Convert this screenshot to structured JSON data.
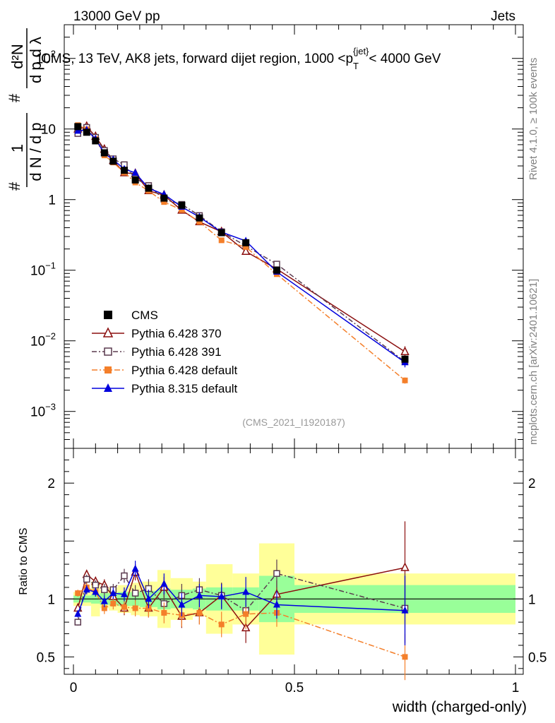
{
  "header": {
    "left": "13000 GeV pp",
    "right": "Jets",
    "side_top": "Rivet 4.1.0, ≥ 100k events",
    "side_bottom": "mcplots.cern.ch [arXiv:2401.10621]"
  },
  "chart_data": {
    "type": "line",
    "title": "CMS, 13 TeV, AK8 jets, forward dijet region, 1000 <p_T^{jet}< 4000 GeV",
    "title_parts": {
      "pre": "CMS, 13 TeV, AK8 jets, forward dijet region, 1000 <p",
      "sub": "T",
      "sup": "{jet}",
      "post": "< 4000 GeV"
    },
    "analysis_id": "(CMS_2021_I1920187)",
    "xlabel": "width (charged-only)",
    "ylabel_parts": {
      "main": "1/N dN/dp_T dλ",
      "hash": "#",
      "frac1_num": "1",
      "frac1_den": "d N / d p",
      "frac2_num": "d²N",
      "frac2_den": "d p  d λ",
      "sub": "T"
    },
    "ratio_ylabel": "Ratio to CMS",
    "xlim": [
      0,
      1
    ],
    "ylim_log": [
      0.0003,
      300
    ],
    "ratio_ylim": [
      0.35,
      2.3
    ],
    "x_ticks": [
      {
        "v": 0,
        "label": "0"
      },
      {
        "v": 0.5,
        "label": "0.5"
      },
      {
        "v": 1,
        "label": "1"
      }
    ],
    "y_ticks": [
      {
        "v": 0.001,
        "base": "10",
        "exp": "−3"
      },
      {
        "v": 0.01,
        "base": "10",
        "exp": "−2"
      },
      {
        "v": 0.1,
        "base": "10",
        "exp": "−1"
      },
      {
        "v": 1,
        "base": "1",
        "exp": ""
      },
      {
        "v": 10,
        "base": "10",
        "exp": ""
      },
      {
        "v": 100,
        "base": "10",
        "exp": "2"
      }
    ],
    "ratio_ticks": [
      {
        "v": 0.5,
        "label": "0.5"
      },
      {
        "v": 1,
        "label": "1"
      },
      {
        "v": 2,
        "label": "2"
      }
    ],
    "x": [
      0.01,
      0.03,
      0.05,
      0.07,
      0.09,
      0.115,
      0.14,
      0.17,
      0.205,
      0.245,
      0.285,
      0.335,
      0.39,
      0.46,
      0.75
    ],
    "bin_edges": [
      0,
      0.02,
      0.04,
      0.06,
      0.08,
      0.1,
      0.13,
      0.15,
      0.19,
      0.22,
      0.27,
      0.3,
      0.36,
      0.42,
      0.5,
      1.0
    ],
    "series": [
      {
        "name": "CMS",
        "style": "data",
        "color": "#000000",
        "values": [
          10.8,
          9.0,
          6.8,
          4.6,
          3.5,
          2.6,
          1.9,
          1.45,
          1.05,
          0.83,
          0.55,
          0.34,
          0.245,
          0.1,
          0.0055
        ],
        "band_inner": [
          0.03,
          0.03,
          0.04,
          0.05,
          0.05,
          0.06,
          0.06,
          0.07,
          0.09,
          0.08,
          0.09,
          0.1,
          0.1,
          0.2,
          0.12
        ],
        "band_outer": [
          0.06,
          0.06,
          0.15,
          0.08,
          0.1,
          0.12,
          0.14,
          0.15,
          0.25,
          0.18,
          0.15,
          0.3,
          0.22,
          0.48,
          0.22
        ]
      },
      {
        "name": "Pythia 6.428 370",
        "style": "open-triangle",
        "dash": "",
        "color": "#8b0f0f",
        "ratio": [
          0.92,
          1.21,
          1.15,
          1.12,
          1.02,
          0.92,
          1.23,
          0.92,
          1.1,
          0.85,
          0.88,
          1.03,
          0.75,
          1.04,
          1.27
        ],
        "ratio_err": [
          0.04,
          0.04,
          0.04,
          0.05,
          0.05,
          0.06,
          0.07,
          0.08,
          0.09,
          0.1,
          0.1,
          0.11,
          0.13,
          0.12,
          0.4
        ]
      },
      {
        "name": "Pythia 6.428 391",
        "style": "open-square",
        "dash": "7,3,2,3",
        "color": "#5a3a4f",
        "ratio": [
          0.8,
          1.17,
          1.12,
          1.08,
          1.08,
          1.2,
          1.05,
          1.09,
          0.96,
          1.03,
          1.08,
          1.03,
          0.9,
          1.22,
          0.92
        ],
        "ratio_err": [
          0.03,
          0.04,
          0.04,
          0.05,
          0.05,
          0.06,
          0.07,
          0.08,
          0.09,
          0.1,
          0.1,
          0.11,
          0.13,
          0.12,
          0.3
        ]
      },
      {
        "name": "Pythia 6.428 default",
        "style": "filled-square",
        "dash": "8,3,2,3",
        "color": "#f47f2a",
        "ratio": [
          1.05,
          1.1,
          1.06,
          0.92,
          0.96,
          0.93,
          0.92,
          0.92,
          0.88,
          0.86,
          0.88,
          0.78,
          0.87,
          0.88,
          0.5
        ],
        "ratio_err": [
          0.03,
          0.04,
          0.04,
          0.05,
          0.05,
          0.06,
          0.07,
          0.08,
          0.09,
          0.1,
          0.1,
          0.11,
          0.13,
          0.12,
          0.2
        ]
      },
      {
        "name": "Pythia 8.315 default",
        "style": "filled-triangle",
        "dash": "",
        "color": "#0000dd",
        "ratio": [
          0.87,
          1.08,
          1.06,
          0.98,
          1.05,
          1.04,
          1.26,
          1.0,
          1.13,
          0.95,
          1.03,
          1.02,
          1.06,
          0.95,
          0.9
        ],
        "ratio_err": [
          0.03,
          0.04,
          0.04,
          0.05,
          0.05,
          0.06,
          0.07,
          0.08,
          0.09,
          0.1,
          0.1,
          0.11,
          0.13,
          0.12,
          0.3
        ]
      }
    ]
  }
}
